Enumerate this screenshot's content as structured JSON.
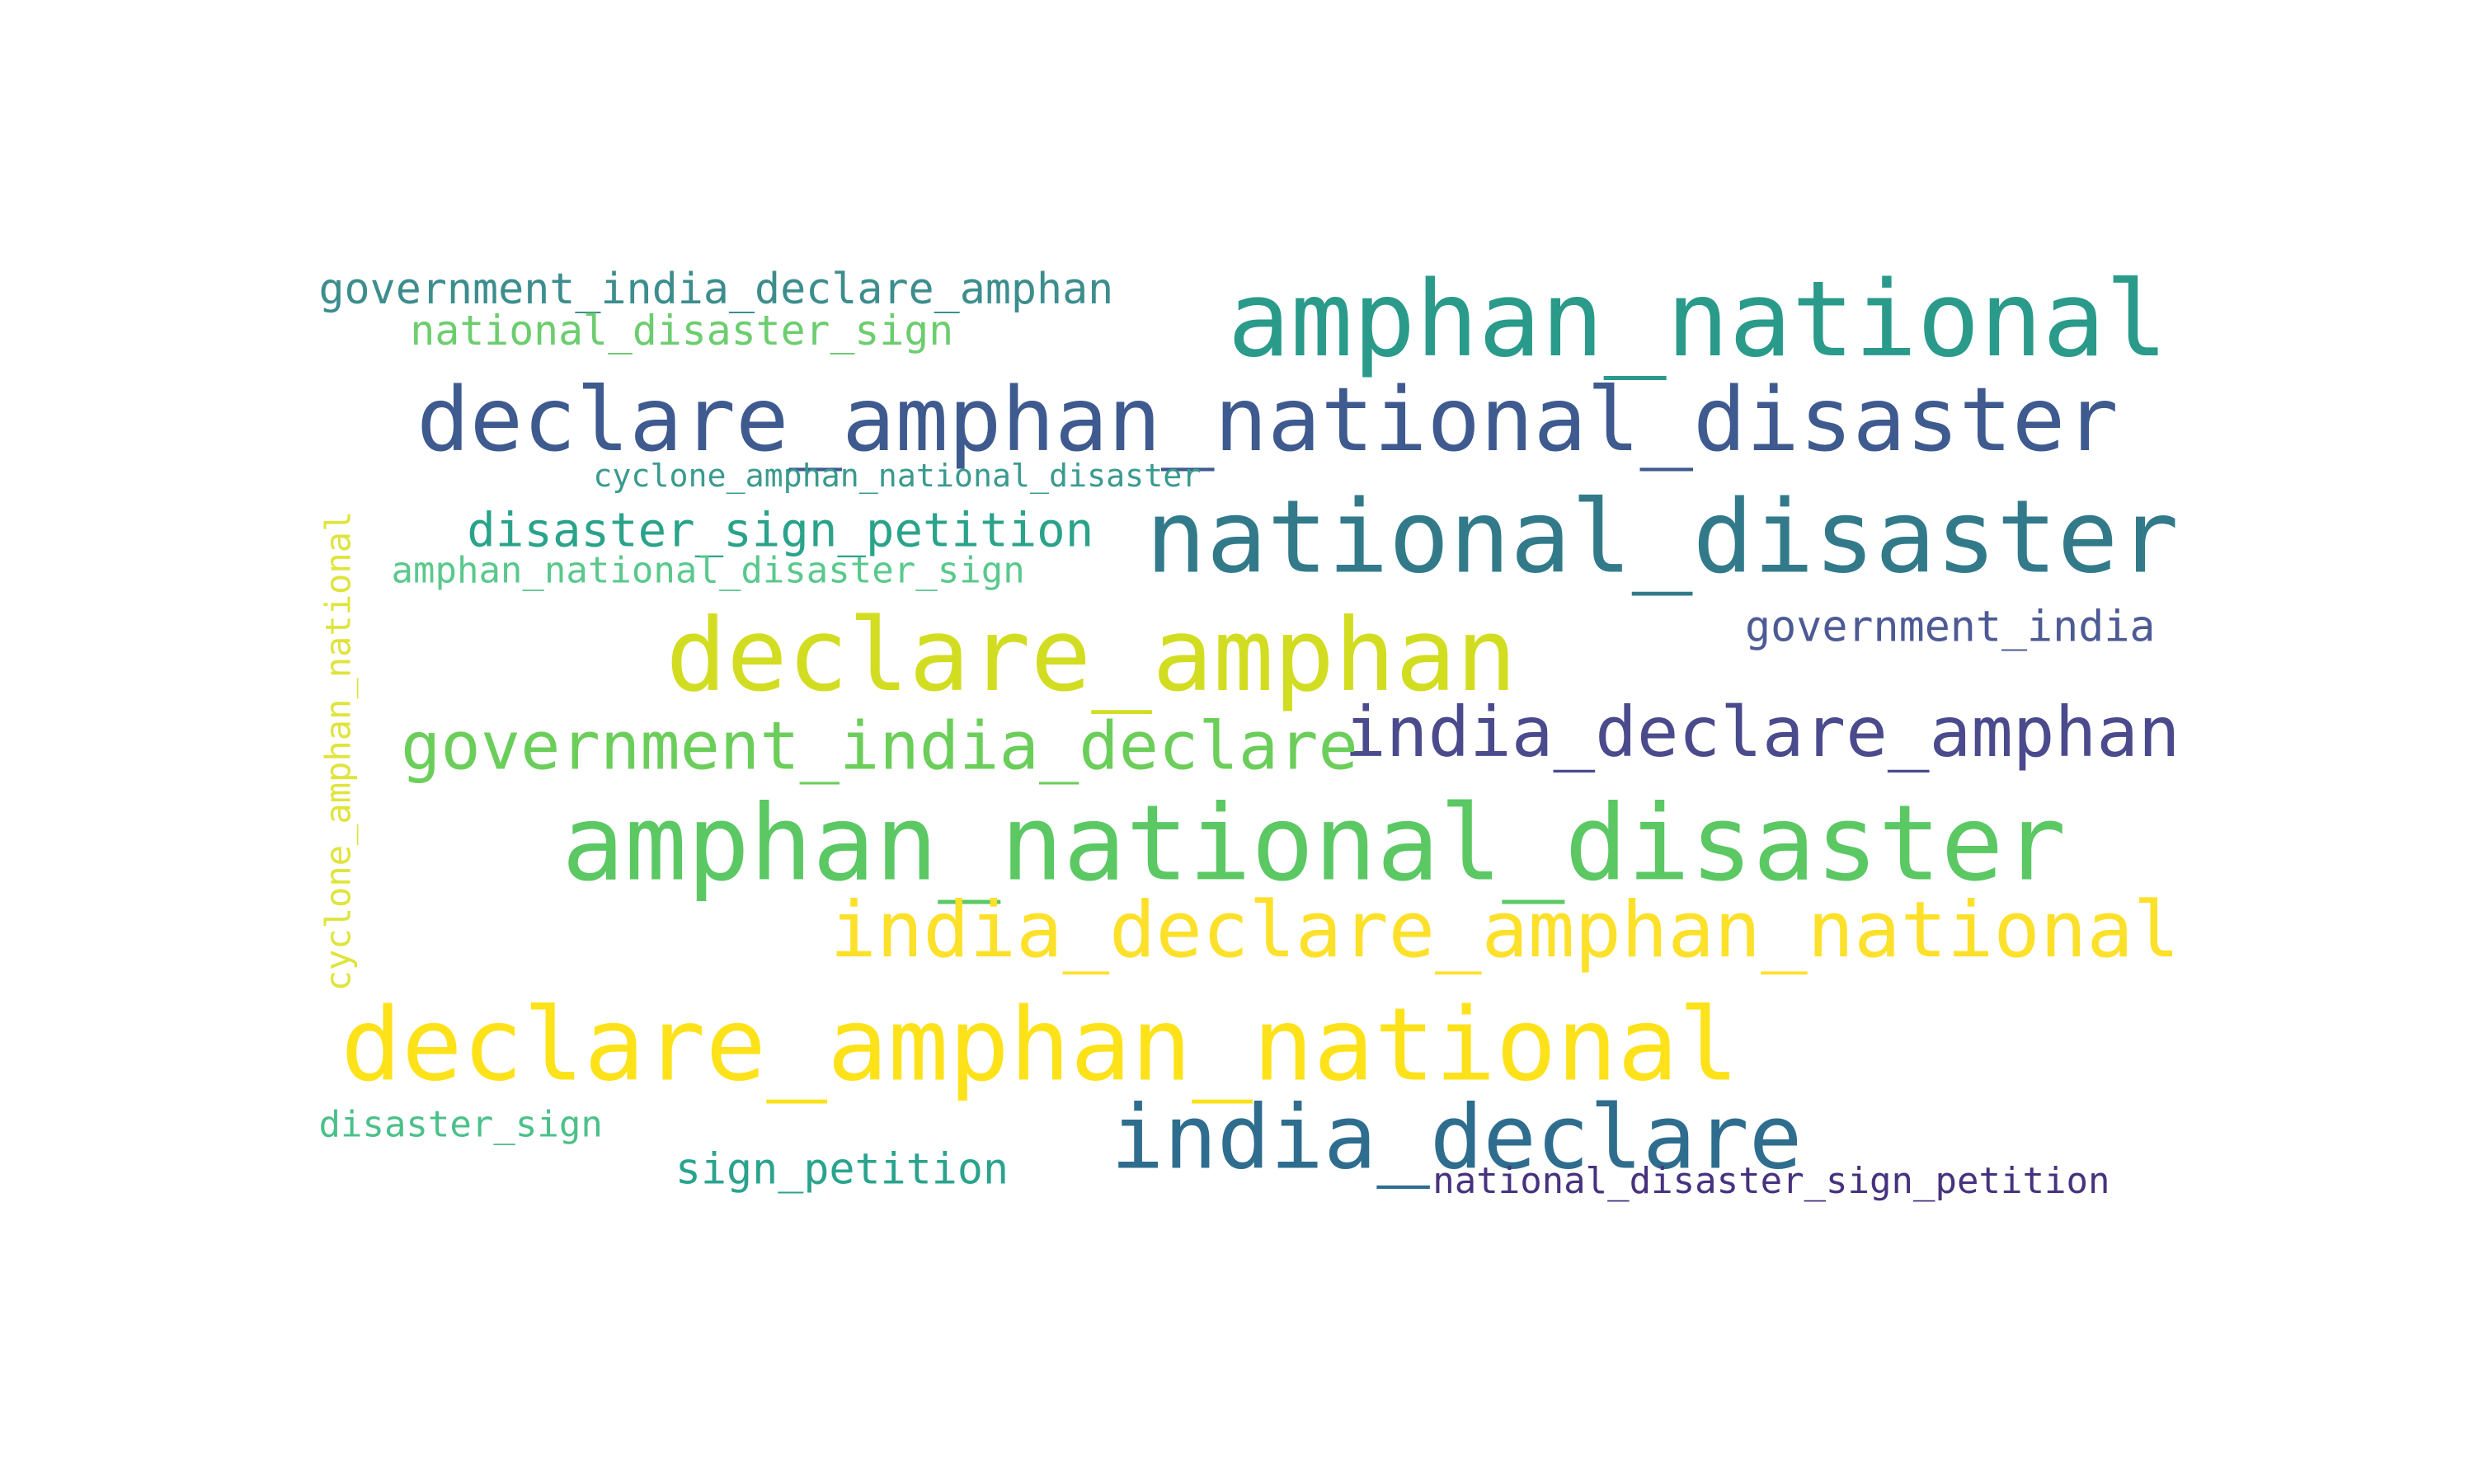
{
  "words": [
    {
      "text": "amphan_national",
      "color": "#2a9a8a"
    },
    {
      "text": "declare_amphan_national_disaster",
      "color": "#3e5a8f"
    },
    {
      "text": "national_disaster",
      "color": "#327a8a"
    },
    {
      "text": "declare_amphan",
      "color": "#d2dd22"
    },
    {
      "text": "amphan_national_disaster",
      "color": "#5bc864"
    },
    {
      "text": "declare_amphan_national",
      "color": "#fde21a"
    },
    {
      "text": "india_declare",
      "color": "#2f6d8e"
    },
    {
      "text": "india_declare_amphan",
      "color": "#4a4a8c"
    },
    {
      "text": "india_declare_amphan_national",
      "color": "#fde02a"
    },
    {
      "text": "government_india_declare",
      "color": "#6cce5a"
    },
    {
      "text": "government_india_declare_amphan",
      "color": "#3d8d8d"
    },
    {
      "text": "national_disaster_sign",
      "color": "#6ccd6e"
    },
    {
      "text": "cyclone_amphan_national_disaster",
      "color": "#3a9a8e"
    },
    {
      "text": "disaster_sign_petition",
      "color": "#2aa38a"
    },
    {
      "text": "amphan_national_disaster_sign",
      "color": "#5ac88c"
    },
    {
      "text": "government_india",
      "color": "#4d5a94"
    },
    {
      "text": "cyclone_amphan_national",
      "color": "#dfe43a"
    },
    {
      "text": "disaster_sign",
      "color": "#4cc08a"
    },
    {
      "text": "sign_petition",
      "color": "#2aa38e"
    },
    {
      "text": "national_disaster_sign_petition",
      "color": "#46327e"
    }
  ]
}
